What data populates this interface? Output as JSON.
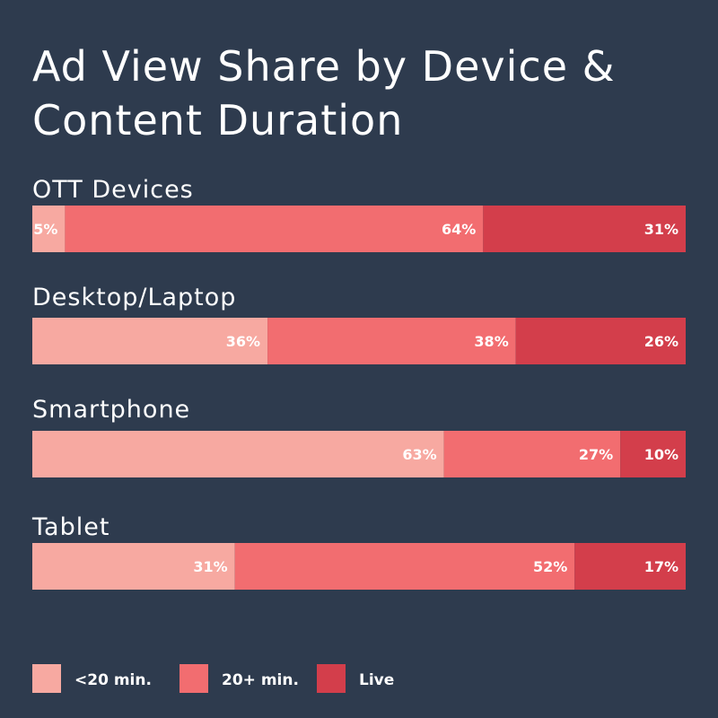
{
  "chart_data": {
    "type": "bar",
    "orientation": "horizontal",
    "stacked": true,
    "normalized_percent": true,
    "title_lines": [
      "Ad View Share by Device &",
      "Content Duration"
    ],
    "categories": [
      "OTT Devices",
      "Desktop/Laptop",
      "Smartphone",
      "Tablet"
    ],
    "series": [
      {
        "name": "<20 min.",
        "color": "#f7a9a1",
        "values": [
          5,
          36,
          63,
          31
        ]
      },
      {
        "name": "20+ min.",
        "color": "#f26d70",
        "values": [
          64,
          38,
          27,
          52
        ]
      },
      {
        "name": "Live",
        "color": "#d33e4b",
        "values": [
          31,
          26,
          10,
          17
        ]
      }
    ],
    "value_suffix": "%",
    "xlim": [
      0,
      100
    ],
    "grid": false,
    "legend_position": "bottom-left"
  }
}
